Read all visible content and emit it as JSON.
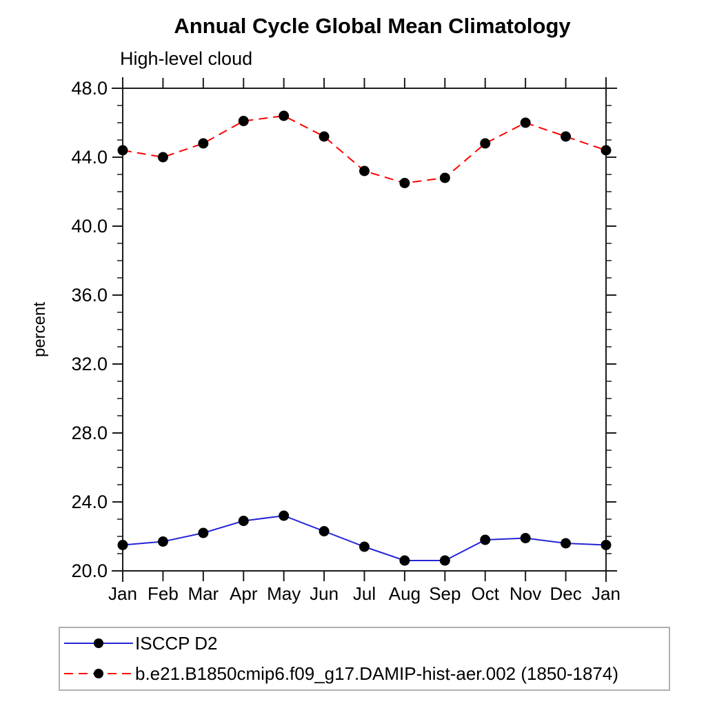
{
  "chart_data": {
    "type": "line",
    "title": "Annual Cycle Global Mean Climatology",
    "subtitle": "High-level cloud",
    "xlabel": "",
    "ylabel": "percent",
    "ylim": [
      20.0,
      48.0
    ],
    "y_major_step": 4.0,
    "y_minor_step": 1.0,
    "y_tick_labels": [
      "20.0",
      "24.0",
      "28.0",
      "32.0",
      "36.0",
      "40.0",
      "44.0",
      "48.0"
    ],
    "x_tick_labels": [
      "Jan",
      "Feb",
      "Mar",
      "Apr",
      "May",
      "Jun",
      "Jul",
      "Aug",
      "Sep",
      "Oct",
      "Nov",
      "Dec",
      "Jan"
    ],
    "grid": false,
    "legend_position": "bottom",
    "axis_color": "#1a1a1a",
    "legend_border_color": "#b0b0b0",
    "marker_color": "#000000",
    "marker_shape": "filled-circle",
    "series": [
      {
        "name": "ISCCP D2",
        "color": "#2424d6",
        "line_style": "solid",
        "values": [
          21.5,
          21.7,
          22.2,
          22.9,
          23.2,
          22.3,
          21.4,
          20.6,
          20.6,
          21.8,
          21.9,
          21.6,
          21.5
        ]
      },
      {
        "name": "b.e21.B1850cmip6.f09_g17.DAMIP-hist-aer.002 (1850-1874)",
        "color": "#ff0000",
        "line_style": "dashed",
        "values": [
          44.4,
          44.0,
          44.8,
          46.1,
          46.4,
          45.2,
          43.2,
          42.5,
          42.8,
          44.8,
          46.0,
          45.2,
          44.4
        ]
      }
    ]
  }
}
